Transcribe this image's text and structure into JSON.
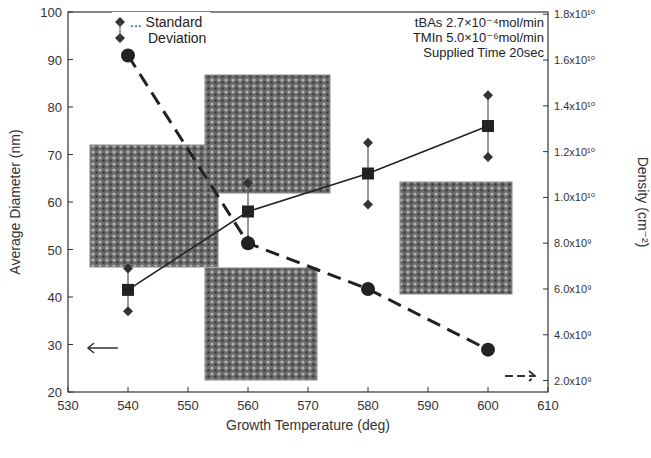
{
  "chart_data": {
    "type": "line",
    "x_label": "Growth Temperature (deg)",
    "y_label": "Average Diameter (nm)",
    "y2_label": "Density (cm⁻²)",
    "annotations": [
      "... Standard Deviation",
      "tBAs  2.7×10⁻⁴mol/min",
      "TMIn 5.0×10⁻⁶mol/min",
      "Supplied Time 20sec"
    ],
    "x": [
      540,
      560,
      580,
      600
    ],
    "series": [
      {
        "name": "Average Diameter",
        "color": "#222222",
        "marker": "square",
        "line_style": "solid",
        "values": [
          41.5,
          58,
          66,
          76
        ],
        "errors": [
          4.5,
          6,
          6.5,
          6.5
        ]
      },
      {
        "name": "Density",
        "color": "#222222",
        "marker": "circle",
        "line_style": "dashed",
        "axis": "y2",
        "values": [
          16200000000,
          8000000000,
          6000000000,
          3350000000
        ]
      }
    ],
    "xlim": [
      530,
      610
    ],
    "xticks": [
      530,
      540,
      550,
      560,
      570,
      580,
      590,
      600,
      610
    ],
    "ylim": [
      20,
      100
    ],
    "yticks": [
      20,
      30,
      40,
      50,
      60,
      70,
      80,
      90,
      100
    ],
    "y2lim": [
      1500000000,
      18100000000
    ],
    "y2ticks": [
      {
        "value": 2000000000,
        "label": "2.0x10⁹"
      },
      {
        "value": 4000000000,
        "label": "4.0x10⁹"
      },
      {
        "value": 6000000000,
        "label": "6.0x10⁹"
      },
      {
        "value": 8000000000,
        "label": "8.0x10⁹"
      },
      {
        "value": 10000000000,
        "label": "1.0x10¹⁰"
      },
      {
        "value": 12000000000,
        "label": "1.2x10¹⁰"
      },
      {
        "value": 14000000000,
        "label": "1.4x10¹⁰"
      },
      {
        "value": 16000000000,
        "label": "1.6x10¹⁰"
      },
      {
        "value": 18000000000,
        "label": "1.8x10¹⁰"
      }
    ],
    "grid": false
  }
}
